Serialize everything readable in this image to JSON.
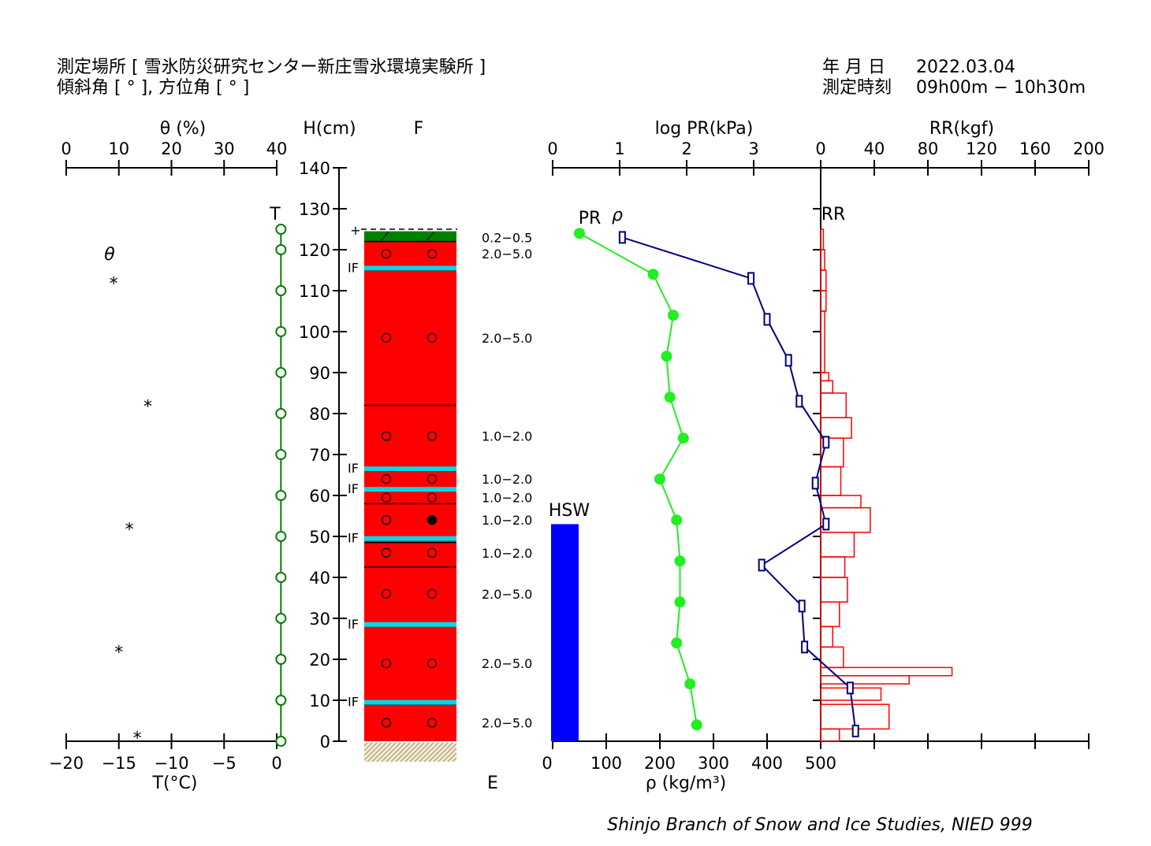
{
  "header": {
    "location_label": "測定場所 [ 雪氷防災研究センター新庄雪氷環境実験所 ]",
    "slope_label": "傾斜角 [ ° ], 方位角 [ ° ]",
    "date_label": "年 月 日",
    "date_value": "2022.03.04",
    "time_label": "測定時刻",
    "time_value": "09h00m − 10h30m"
  },
  "footer": {
    "credit": "Shinjo Branch of Snow and Ice Studies, NIED 999"
  },
  "colors": {
    "temperature": "#008000",
    "snow_layer": "#ff0000",
    "ice_film": "#00d8e8",
    "surface_layer": "#008000",
    "pr": "#22ee22",
    "density": "#000080",
    "rr": "#ff0000",
    "hsw": "#0000ff",
    "ground": "#a09060"
  },
  "chart_data": [
    {
      "type": "scatter",
      "name": "theta",
      "xlabel": "θ (%)",
      "xlim": [
        0,
        40
      ],
      "x_ticks": [
        "0",
        "10",
        "20",
        "30",
        "40"
      ],
      "label_theta": "θ",
      "marker": "*",
      "points": [
        {
          "h": 113,
          "theta": 9
        },
        {
          "h": 83,
          "theta": 15.5
        },
        {
          "h": 53,
          "theta": 12
        },
        {
          "h": 23,
          "theta": 10
        },
        {
          "h": 2,
          "theta": 13.5
        }
      ]
    },
    {
      "type": "line",
      "name": "T",
      "label": "T",
      "xlabel": "T(°C)",
      "xlim": [
        -20,
        0
      ],
      "x_ticks": [
        "−20",
        "−15",
        "−10",
        "−5",
        "0"
      ],
      "points": [
        {
          "h": 125,
          "t": 0.4
        },
        {
          "h": 120,
          "t": 0.4
        },
        {
          "h": 110,
          "t": 0.4
        },
        {
          "h": 100,
          "t": 0.4
        },
        {
          "h": 90,
          "t": 0.4
        },
        {
          "h": 80,
          "t": 0.4
        },
        {
          "h": 70,
          "t": 0.4
        },
        {
          "h": 60,
          "t": 0.4
        },
        {
          "h": 50,
          "t": 0.4
        },
        {
          "h": 40,
          "t": 0.4
        },
        {
          "h": 30,
          "t": 0.4
        },
        {
          "h": 20,
          "t": 0.4
        },
        {
          "h": 10,
          "t": 0.4
        },
        {
          "h": 0,
          "t": 0.4
        }
      ]
    },
    {
      "type": "table",
      "name": "stratigraphy",
      "ylabel": "H(cm)",
      "ylim": [
        0,
        140
      ],
      "y_ticks": [
        "0",
        "10",
        "20",
        "30",
        "40",
        "50",
        "60",
        "70",
        "80",
        "90",
        "100",
        "110",
        "120",
        "130",
        "140"
      ],
      "f_label": "F",
      "e_label": "E",
      "surface_height": 125,
      "surface_mark": "+",
      "top_layer": {
        "bottom": 122,
        "top": 124.5
      },
      "layers": [
        {
          "bottom": 0,
          "top": 122
        }
      ],
      "boundaries": [
        9,
        28.5,
        42.5,
        48.5,
        58,
        61.5,
        66,
        82,
        115,
        122
      ],
      "ice_films": [
        {
          "h": 9.5,
          "label": "IF"
        },
        {
          "h": 28.5,
          "label": "IF"
        },
        {
          "h": 49.5,
          "label": "IF"
        },
        {
          "h": 61.5,
          "label": "IF"
        },
        {
          "h": 66.5,
          "label": "IF"
        },
        {
          "h": 115.5,
          "label": "IF"
        }
      ],
      "grain_marks": [
        {
          "h": 119,
          "left": "○",
          "right": "○"
        },
        {
          "h": 98.5,
          "left": "○",
          "right": "○"
        },
        {
          "h": 74.5,
          "left": "○",
          "right": "○"
        },
        {
          "h": 64,
          "left": "○",
          "right": "○"
        },
        {
          "h": 59.5,
          "left": "○",
          "right": "○"
        },
        {
          "h": 54,
          "left": "○",
          "right": "●"
        },
        {
          "h": 46,
          "left": "○",
          "right": "○"
        },
        {
          "h": 36,
          "left": "○",
          "right": "○"
        },
        {
          "h": 19,
          "left": "○",
          "right": "○"
        },
        {
          "h": 4.5,
          "left": "○",
          "right": "○"
        }
      ],
      "grain_sizes": [
        {
          "h": 123,
          "text": "0.2−0.5"
        },
        {
          "h": 119,
          "text": "2.0−5.0"
        },
        {
          "h": 98.5,
          "text": "2.0−5.0"
        },
        {
          "h": 74.5,
          "text": "1.0−2.0"
        },
        {
          "h": 64,
          "text": "1.0−2.0"
        },
        {
          "h": 59.5,
          "text": "1.0−2.0"
        },
        {
          "h": 54,
          "text": "1.0−2.0"
        },
        {
          "h": 46,
          "text": "1.0−2.0"
        },
        {
          "h": 36,
          "text": "2.0−5.0"
        },
        {
          "h": 19,
          "text": "2.0−5.0"
        },
        {
          "h": 4.5,
          "text": "2.0−5.0"
        }
      ]
    },
    {
      "type": "line",
      "name": "PR",
      "label": "PR",
      "xlabel": "log PR(kPa)",
      "xlim": [
        0,
        4
      ],
      "x_ticks": [
        "0",
        "1",
        "2",
        "3"
      ],
      "points": [
        {
          "h": 124,
          "v": 0.4
        },
        {
          "h": 114,
          "v": 1.5
        },
        {
          "h": 104,
          "v": 1.8
        },
        {
          "h": 94,
          "v": 1.7
        },
        {
          "h": 84,
          "v": 1.75
        },
        {
          "h": 74,
          "v": 1.95
        },
        {
          "h": 64,
          "v": 1.6
        },
        {
          "h": 54,
          "v": 1.85
        },
        {
          "h": 44,
          "v": 1.9
        },
        {
          "h": 34,
          "v": 1.9
        },
        {
          "h": 24,
          "v": 1.85
        },
        {
          "h": 14,
          "v": 2.05
        },
        {
          "h": 4,
          "v": 2.15
        }
      ]
    },
    {
      "type": "line",
      "name": "density",
      "label": "ρ",
      "xlabel": "ρ (kg/m³)",
      "xlim": [
        0,
        500
      ],
      "x_ticks": [
        "0",
        "100",
        "200",
        "300",
        "400",
        "500"
      ],
      "points": [
        {
          "h": 123,
          "v": 130
        },
        {
          "h": 113,
          "v": 370
        },
        {
          "h": 103,
          "v": 400
        },
        {
          "h": 93,
          "v": 440
        },
        {
          "h": 83,
          "v": 460
        },
        {
          "h": 73,
          "v": 510
        },
        {
          "h": 63,
          "v": 490
        },
        {
          "h": 53,
          "v": 510
        },
        {
          "h": 43,
          "v": 390
        },
        {
          "h": 33,
          "v": 465
        },
        {
          "h": 23,
          "v": 470
        },
        {
          "h": 13,
          "v": 555
        },
        {
          "h": 2.5,
          "v": 565
        }
      ]
    },
    {
      "type": "bar",
      "name": "HSW",
      "label": "HSW",
      "value_h": 53
    },
    {
      "type": "bar",
      "name": "RR",
      "label": "RR",
      "xlabel": "RR(kgf)",
      "xlim": [
        0,
        200
      ],
      "x_ticks": [
        "0",
        "40",
        "80",
        "120",
        "160",
        "200"
      ],
      "bars": [
        {
          "bottom": 120,
          "top": 125,
          "v": 2
        },
        {
          "bottom": 115,
          "top": 120,
          "v": 3
        },
        {
          "bottom": 110,
          "top": 115,
          "v": 4
        },
        {
          "bottom": 105,
          "top": 110,
          "v": 4
        },
        {
          "bottom": 90,
          "top": 105,
          "v": 3
        },
        {
          "bottom": 88,
          "top": 90,
          "v": 6
        },
        {
          "bottom": 85,
          "top": 88,
          "v": 9
        },
        {
          "bottom": 79,
          "top": 85,
          "v": 19
        },
        {
          "bottom": 74,
          "top": 79,
          "v": 23
        },
        {
          "bottom": 67,
          "top": 74,
          "v": 17
        },
        {
          "bottom": 60,
          "top": 67,
          "v": 15
        },
        {
          "bottom": 57,
          "top": 60,
          "v": 30
        },
        {
          "bottom": 51,
          "top": 57,
          "v": 37
        },
        {
          "bottom": 45,
          "top": 51,
          "v": 25
        },
        {
          "bottom": 40,
          "top": 45,
          "v": 18
        },
        {
          "bottom": 34,
          "top": 40,
          "v": 20
        },
        {
          "bottom": 28,
          "top": 34,
          "v": 14
        },
        {
          "bottom": 23,
          "top": 28,
          "v": 9
        },
        {
          "bottom": 18,
          "top": 23,
          "v": 17
        },
        {
          "bottom": 16,
          "top": 18,
          "v": 98
        },
        {
          "bottom": 14,
          "top": 16,
          "v": 66
        },
        {
          "bottom": 10,
          "top": 13,
          "v": 45
        },
        {
          "bottom": 3,
          "top": 9,
          "v": 51
        },
        {
          "bottom": 0,
          "top": 3,
          "v": 14
        }
      ]
    }
  ]
}
